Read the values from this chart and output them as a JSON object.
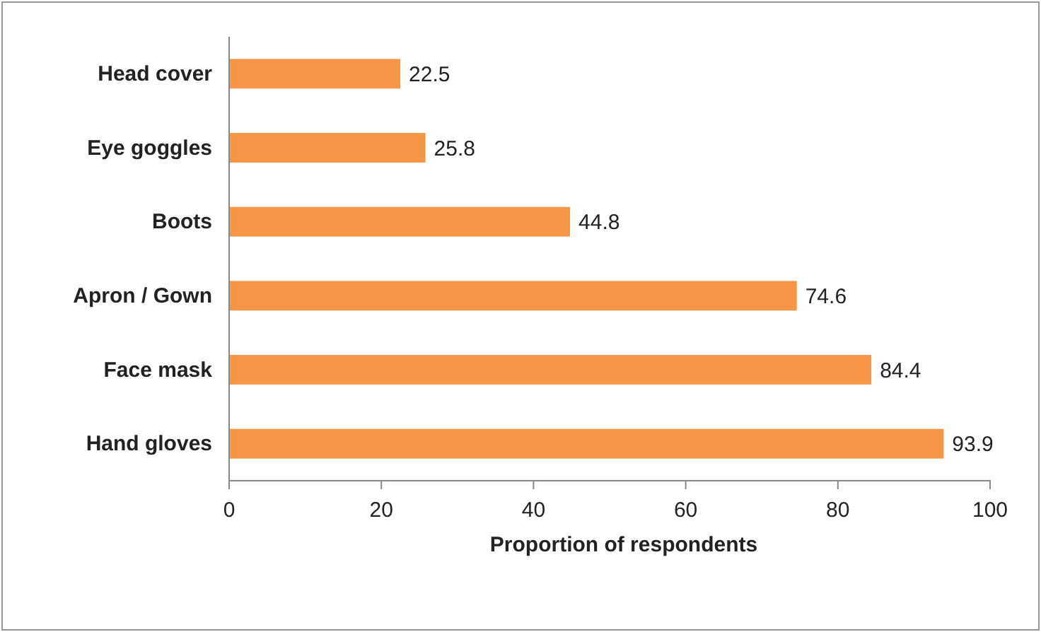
{
  "chart_data": {
    "type": "bar",
    "orientation": "horizontal",
    "xlabel": "Proportion of respondents",
    "categories": [
      "Head cover",
      "Eye goggles",
      "Boots",
      "Apron / Gown",
      "Face mask",
      "Hand gloves"
    ],
    "values": [
      22.5,
      25.8,
      44.8,
      74.6,
      84.4,
      93.9
    ],
    "color": "#f79646",
    "xlim": [
      0,
      100
    ],
    "xticks": [
      0,
      20,
      40,
      60,
      80,
      100
    ],
    "data_labels": true
  }
}
